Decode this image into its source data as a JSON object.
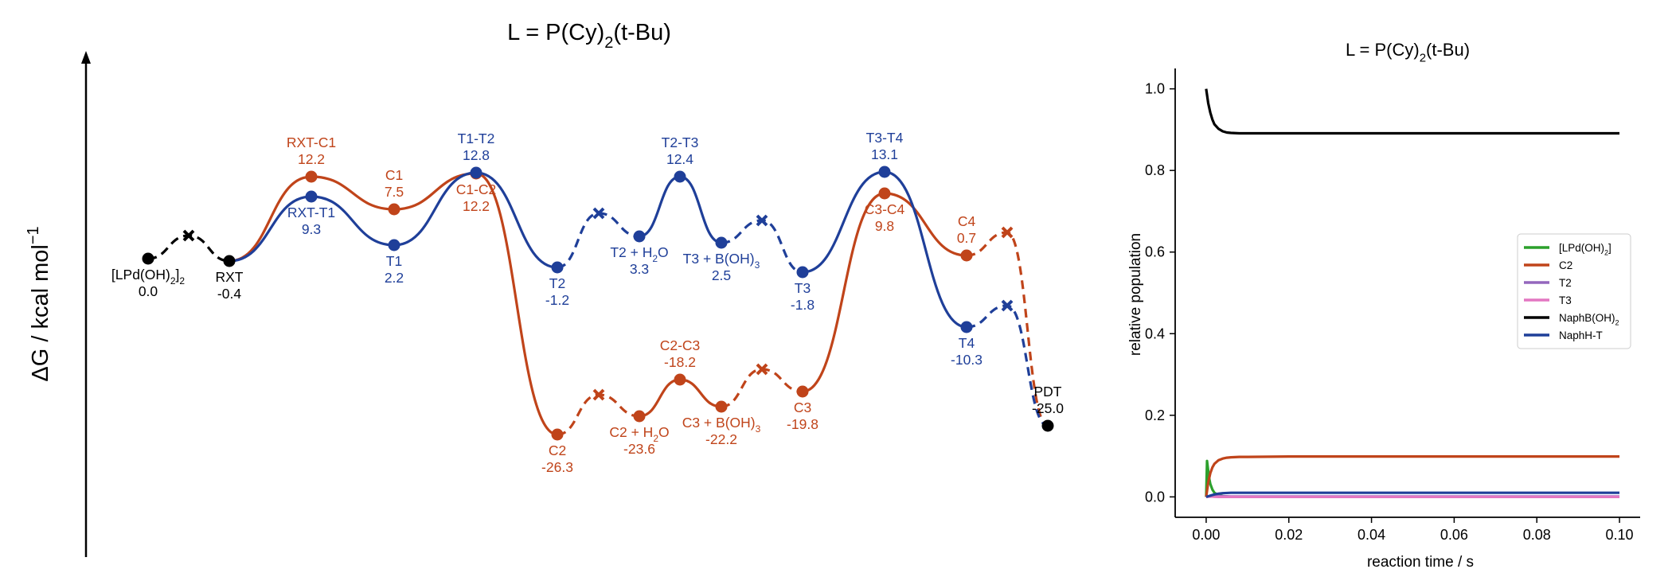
{
  "chart_data": [
    {
      "type": "line",
      "subtype": "energy-profile",
      "title": {
        "main": "L = P(Cy)",
        "sub": "2",
        "rest": "(t-Bu)"
      },
      "ylabel": {
        "main": "ΔG / kcal mol",
        "sup": "−1"
      },
      "colors": {
        "common": "#000000",
        "C": "#c0441a",
        "T": "#1f3f99"
      },
      "points": [
        {
          "id": "LPd",
          "kind": "min",
          "path": "common",
          "label": {
            "parts": [
              [
                "[LPd(OH)",
                "n"
              ],
              [
                "2",
                "sub"
              ],
              [
                "]",
                "n"
              ],
              [
                "2",
                "sub"
              ]
            ]
          },
          "value": "0.0",
          "pos": "below"
        },
        {
          "id": "RXT",
          "kind": "min",
          "path": "common",
          "label": {
            "parts": [
              [
                "RXT",
                "n"
              ]
            ]
          },
          "value": "-0.4",
          "pos": "below"
        },
        {
          "id": "RXT-C1",
          "kind": "ts",
          "path": "C",
          "label": {
            "parts": [
              [
                "RXT-C1",
                "n"
              ]
            ]
          },
          "value": "12.2",
          "pos": "above"
        },
        {
          "id": "C1",
          "kind": "min",
          "path": "C",
          "label": {
            "parts": [
              [
                "C1",
                "n"
              ]
            ]
          },
          "value": "7.5",
          "pos": "above"
        },
        {
          "id": "C1-C2",
          "kind": "ts",
          "path": "C",
          "label": {
            "parts": [
              [
                "C1-C2",
                "n"
              ]
            ]
          },
          "value": "12.2",
          "pos": "below"
        },
        {
          "id": "C2",
          "kind": "min",
          "path": "C",
          "label": {
            "parts": [
              [
                "C2",
                "n"
              ]
            ]
          },
          "value": "-26.3",
          "pos": "below"
        },
        {
          "id": "C2H2O",
          "kind": "min",
          "path": "C",
          "label": {
            "parts": [
              [
                "C2 + H",
                "n"
              ],
              [
                "2",
                "sub"
              ],
              [
                "O",
                "n"
              ]
            ]
          },
          "value": "-23.6",
          "pos": "below"
        },
        {
          "id": "C2-C3",
          "kind": "ts",
          "path": "C",
          "label": {
            "parts": [
              [
                "C2-C3",
                "n"
              ]
            ]
          },
          "value": "-18.2",
          "pos": "above"
        },
        {
          "id": "C3BOH",
          "kind": "min",
          "path": "C",
          "label": {
            "parts": [
              [
                "C3 + B(OH)",
                "n"
              ],
              [
                "3",
                "sub"
              ]
            ]
          },
          "value": "-22.2",
          "pos": "below"
        },
        {
          "id": "C3",
          "kind": "min",
          "path": "C",
          "label": {
            "parts": [
              [
                "C3",
                "n"
              ]
            ]
          },
          "value": "-19.8",
          "pos": "below"
        },
        {
          "id": "C3-C4",
          "kind": "ts",
          "path": "C",
          "label": {
            "parts": [
              [
                "C3-C4",
                "n"
              ]
            ]
          },
          "value": "9.8",
          "pos": "below"
        },
        {
          "id": "C4",
          "kind": "min",
          "path": "C",
          "label": {
            "parts": [
              [
                "C4",
                "n"
              ]
            ]
          },
          "value": "0.7",
          "pos": "above"
        },
        {
          "id": "RXT-T1",
          "kind": "ts",
          "path": "T",
          "label": {
            "parts": [
              [
                "RXT-T1",
                "n"
              ]
            ]
          },
          "value": "9.3",
          "pos": "below"
        },
        {
          "id": "T1",
          "kind": "min",
          "path": "T",
          "label": {
            "parts": [
              [
                "T1",
                "n"
              ]
            ]
          },
          "value": "2.2",
          "pos": "below"
        },
        {
          "id": "T1-T2",
          "kind": "ts",
          "path": "T",
          "label": {
            "parts": [
              [
                "T1-T2",
                "n"
              ]
            ]
          },
          "value": "12.8",
          "pos": "above"
        },
        {
          "id": "T2",
          "kind": "min",
          "path": "T",
          "label": {
            "parts": [
              [
                "T2",
                "n"
              ]
            ]
          },
          "value": "-1.2",
          "pos": "below"
        },
        {
          "id": "T2H2O",
          "kind": "min",
          "path": "T",
          "label": {
            "parts": [
              [
                "T2 + H",
                "n"
              ],
              [
                "2",
                "sub"
              ],
              [
                "O",
                "n"
              ]
            ]
          },
          "value": "3.3",
          "pos": "below"
        },
        {
          "id": "T2-T3",
          "kind": "ts",
          "path": "T",
          "label": {
            "parts": [
              [
                "T2-T3",
                "n"
              ]
            ]
          },
          "value": "12.4",
          "pos": "above"
        },
        {
          "id": "T3BOH",
          "kind": "min",
          "path": "T",
          "label": {
            "parts": [
              [
                "T3 + B(OH)",
                "n"
              ],
              [
                "3",
                "sub"
              ]
            ]
          },
          "value": "2.5",
          "pos": "below"
        },
        {
          "id": "T3",
          "kind": "min",
          "path": "T",
          "label": {
            "parts": [
              [
                "T3",
                "n"
              ]
            ]
          },
          "value": "-1.8",
          "pos": "below"
        },
        {
          "id": "T3-T4",
          "kind": "ts",
          "path": "T",
          "label": {
            "parts": [
              [
                "T3-T4",
                "n"
              ]
            ]
          },
          "value": "13.1",
          "pos": "above"
        },
        {
          "id": "T4",
          "kind": "min",
          "path": "T",
          "label": {
            "parts": [
              [
                "T4",
                "n"
              ]
            ]
          },
          "value": "-10.3",
          "pos": "below"
        },
        {
          "id": "PDT",
          "kind": "min",
          "path": "common",
          "label": {
            "parts": [
              [
                "PDT",
                "n"
              ]
            ]
          },
          "value": "-25.0",
          "pos": "above"
        }
      ],
      "connections": [
        {
          "from": "LPd",
          "to": "RXT",
          "path": "common",
          "style": "dashed"
        },
        {
          "from": "RXT",
          "to": "RXT-C1",
          "path": "C",
          "style": "solid"
        },
        {
          "from": "RXT-C1",
          "to": "C1",
          "path": "C",
          "style": "solid"
        },
        {
          "from": "C1",
          "to": "C1-C2",
          "path": "C",
          "style": "solid"
        },
        {
          "from": "C1-C2",
          "to": "C2",
          "path": "C",
          "style": "solid"
        },
        {
          "from": "C2",
          "to": "C2H2O",
          "path": "C",
          "style": "dashed"
        },
        {
          "from": "C2H2O",
          "to": "C2-C3",
          "path": "C",
          "style": "solid"
        },
        {
          "from": "C2-C3",
          "to": "C3BOH",
          "path": "C",
          "style": "solid"
        },
        {
          "from": "C3BOH",
          "to": "C3",
          "path": "C",
          "style": "dashed"
        },
        {
          "from": "C3",
          "to": "C3-C4",
          "path": "C",
          "style": "solid"
        },
        {
          "from": "C3-C4",
          "to": "C4",
          "path": "C",
          "style": "solid"
        },
        {
          "from": "C4",
          "to": "PDT",
          "path": "C",
          "style": "dashed"
        },
        {
          "from": "RXT",
          "to": "RXT-T1",
          "path": "T",
          "style": "solid"
        },
        {
          "from": "RXT-T1",
          "to": "T1",
          "path": "T",
          "style": "solid"
        },
        {
          "from": "T1",
          "to": "T1-T2",
          "path": "T",
          "style": "solid"
        },
        {
          "from": "T1-T2",
          "to": "T2",
          "path": "T",
          "style": "solid"
        },
        {
          "from": "T2",
          "to": "T2H2O",
          "path": "T",
          "style": "dashed"
        },
        {
          "from": "T2H2O",
          "to": "T2-T3",
          "path": "T",
          "style": "solid"
        },
        {
          "from": "T2-T3",
          "to": "T3BOH",
          "path": "T",
          "style": "solid"
        },
        {
          "from": "T3BOH",
          "to": "T3",
          "path": "T",
          "style": "dashed"
        },
        {
          "from": "T3",
          "to": "T3-T4",
          "path": "T",
          "style": "solid"
        },
        {
          "from": "T3-T4",
          "to": "T4",
          "path": "T",
          "style": "solid"
        },
        {
          "from": "T4",
          "to": "PDT",
          "path": "T",
          "style": "dashed"
        }
      ]
    },
    {
      "type": "line",
      "title": {
        "main": "L = P(Cy)",
        "sub": "2",
        "rest": "(t-Bu)"
      },
      "xlabel": "reaction time / s",
      "ylabel": "relative population",
      "xlim": [
        -0.0075,
        0.105
      ],
      "ylim": [
        -0.05,
        1.05
      ],
      "xticks": [
        "0.00",
        "0.02",
        "0.04",
        "0.06",
        "0.08",
        "0.10"
      ],
      "yticks": [
        "0.0",
        "0.2",
        "0.4",
        "0.6",
        "0.8",
        "1.0"
      ],
      "legend_position": "right",
      "series": [
        {
          "name": "[LPd(OH)2]",
          "legend_parts": [
            [
              "[LPd(OH)",
              "n"
            ],
            [
              "2",
              "sub"
            ],
            [
              "]",
              "n"
            ]
          ],
          "color": "#2ca02c",
          "x": [
            0,
            0.0002,
            0.0004,
            0.0006,
            0.0008,
            0.001,
            0.0015,
            0.002,
            0.003,
            0.004,
            0.006,
            0.008,
            0.01,
            0.02,
            0.05,
            0.1
          ],
          "y": [
            0.0,
            0.088,
            0.072,
            0.055,
            0.042,
            0.032,
            0.018,
            0.01,
            0.004,
            0.002,
            0.0,
            0.0,
            0.0,
            0.0,
            0.0,
            0.0
          ]
        },
        {
          "name": "C2",
          "legend_parts": [
            [
              "C2",
              "n"
            ]
          ],
          "color": "#c0441a",
          "x": [
            0,
            0.0005,
            0.001,
            0.0015,
            0.002,
            0.003,
            0.004,
            0.005,
            0.006,
            0.008,
            0.01,
            0.02,
            0.05,
            0.1
          ],
          "y": [
            0.0,
            0.035,
            0.058,
            0.072,
            0.081,
            0.09,
            0.094,
            0.096,
            0.097,
            0.098,
            0.098,
            0.099,
            0.099,
            0.099
          ]
        },
        {
          "name": "T2",
          "legend_parts": [
            [
              "T2",
              "n"
            ]
          ],
          "color": "#9467bd",
          "x": [
            0,
            0.001,
            0.003,
            0.006,
            0.01,
            0.05,
            0.1
          ],
          "y": [
            0.0,
            0.002,
            0.002,
            0.001,
            0.001,
            0.001,
            0.001
          ]
        },
        {
          "name": "T3",
          "legend_parts": [
            [
              "T3",
              "n"
            ]
          ],
          "color": "#e377c2",
          "x": [
            0,
            0.001,
            0.003,
            0.006,
            0.01,
            0.05,
            0.1
          ],
          "y": [
            0.0,
            0.001,
            0.0,
            0.0,
            0.0,
            0.0,
            0.0
          ]
        },
        {
          "name": "NaphB(OH)2",
          "legend_parts": [
            [
              "NaphB(OH)",
              "n"
            ],
            [
              "2",
              "sub"
            ]
          ],
          "color": "#000000",
          "x": [
            0,
            0.0005,
            0.001,
            0.0015,
            0.002,
            0.003,
            0.004,
            0.005,
            0.006,
            0.008,
            0.01,
            0.02,
            0.05,
            0.1
          ],
          "y": [
            1.0,
            0.965,
            0.942,
            0.925,
            0.913,
            0.902,
            0.896,
            0.893,
            0.892,
            0.891,
            0.891,
            0.891,
            0.891,
            0.891
          ]
        },
        {
          "name": "NaphH-T",
          "legend_parts": [
            [
              "NaphH-T",
              "n"
            ]
          ],
          "color": "#1f3f99",
          "x": [
            0,
            0.001,
            0.002,
            0.003,
            0.004,
            0.006,
            0.008,
            0.01,
            0.02,
            0.05,
            0.1
          ],
          "y": [
            0.0,
            0.003,
            0.006,
            0.008,
            0.009,
            0.01,
            0.01,
            0.01,
            0.01,
            0.01,
            0.01
          ]
        }
      ]
    }
  ]
}
